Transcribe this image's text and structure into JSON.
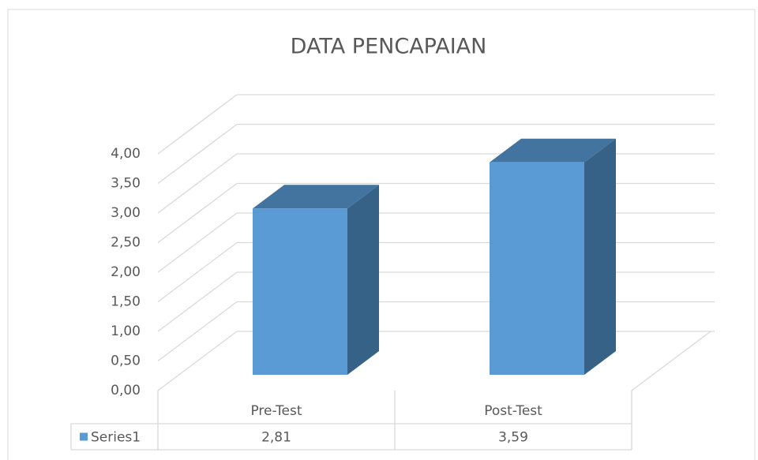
{
  "chart_data": {
    "type": "bar3d",
    "title": "DATA PENCAPAIAN",
    "categories": [
      "Pre-Test",
      "Post-Test"
    ],
    "series": [
      {
        "name": "Series1",
        "color": "#5b9bd5",
        "values": [
          2.81,
          3.59
        ],
        "value_labels": [
          "2,81",
          "3,59"
        ]
      }
    ],
    "ylim": [
      0,
      4
    ],
    "yticks": [
      {
        "value": 0,
        "label": "0,00"
      },
      {
        "value": 0.5,
        "label": "0,50"
      },
      {
        "value": 1,
        "label": "1,00"
      },
      {
        "value": 1.5,
        "label": "1,50"
      },
      {
        "value": 2,
        "label": "2,00"
      },
      {
        "value": 2.5,
        "label": "2,50"
      },
      {
        "value": 3,
        "label": "3,00"
      },
      {
        "value": 3.5,
        "label": "3,50"
      },
      {
        "value": 4,
        "label": "4,00"
      }
    ],
    "grid": true
  }
}
